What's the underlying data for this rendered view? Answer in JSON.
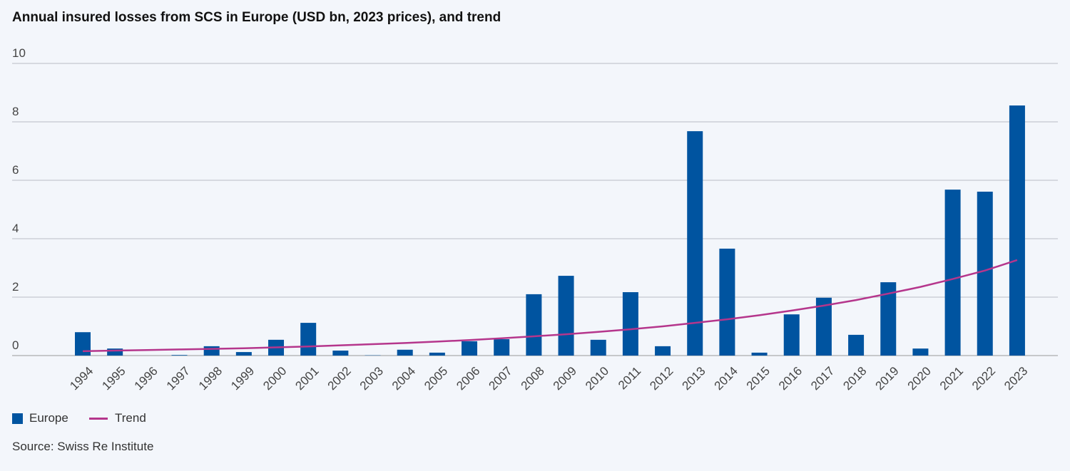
{
  "chart_data": {
    "type": "bar",
    "title": "Annual insured losses from SCS in Europe (USD bn, 2023 prices), and trend",
    "xlabel": "",
    "ylabel": "",
    "ylim": [
      0,
      10
    ],
    "yticks": [
      0,
      2,
      4,
      6,
      8,
      10
    ],
    "grid": true,
    "legend_position": "bottom-left",
    "categories": [
      "1994",
      "1995",
      "1996",
      "1997",
      "1998",
      "1999",
      "2000",
      "2001",
      "2002",
      "2003",
      "2004",
      "2005",
      "2006",
      "2007",
      "2008",
      "2009",
      "2010",
      "2011",
      "2012",
      "2013",
      "2014",
      "2015",
      "2016",
      "2017",
      "2018",
      "2019",
      "2020",
      "2021",
      "2022",
      "2023"
    ],
    "series": [
      {
        "name": "Europe",
        "type": "bar",
        "color": "#0054a0",
        "values": [
          0.8,
          0.24,
          0.0,
          0.02,
          0.32,
          0.12,
          0.54,
          1.12,
          0.17,
          0.01,
          0.2,
          0.1,
          0.49,
          0.56,
          2.1,
          2.73,
          0.54,
          2.17,
          0.32,
          7.68,
          3.66,
          0.1,
          1.41,
          1.98,
          0.71,
          2.51,
          0.24,
          5.68,
          5.61,
          8.56
        ]
      },
      {
        "name": "Trend",
        "type": "line",
        "color": "#b5368c",
        "values": [
          0.15,
          0.17,
          0.19,
          0.21,
          0.23,
          0.25,
          0.28,
          0.31,
          0.35,
          0.39,
          0.43,
          0.48,
          0.53,
          0.59,
          0.66,
          0.73,
          0.81,
          0.9,
          1.0,
          1.12,
          1.24,
          1.38,
          1.54,
          1.71,
          1.9,
          2.12,
          2.35,
          2.62,
          2.91,
          3.27
        ]
      }
    ]
  },
  "source": "Source: Swiss Re Institute"
}
